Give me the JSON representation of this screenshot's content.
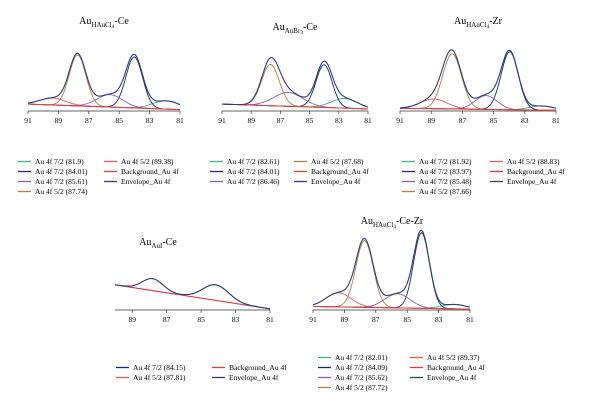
{
  "chart_data": [
    {
      "type": "line",
      "title_main": "Au",
      "title_sub": "HAuCl",
      "title_sub2": "4",
      "title_suffix": "-Ce",
      "xlim": [
        91,
        81
      ],
      "xticks": [
        91,
        89,
        87,
        85,
        83,
        81
      ],
      "series": [
        {
          "name": "Au 4f 7/2 (81.9)",
          "color": "#3cb878",
          "peak": {
            "center": 81.9,
            "height": 0.12,
            "width": 0.9
          }
        },
        {
          "name": "Au 4f 7/2 (84.01)",
          "color": "#1a2a6c",
          "peak": {
            "center": 84.01,
            "height": 0.74,
            "width": 0.55
          }
        },
        {
          "name": "Au 4f 7/2 (85.61)",
          "color": "#8e5fb3",
          "peak": {
            "center": 85.61,
            "height": 0.18,
            "width": 0.85
          }
        },
        {
          "name": "Au 4f 5/2 (87.74)",
          "color": "#b07d48",
          "peak": {
            "center": 87.74,
            "height": 0.74,
            "width": 0.55
          }
        },
        {
          "name": "Au 4f 5/2 (89.38)",
          "color": "#e05a5a",
          "peak": {
            "center": 89.38,
            "height": 0.1,
            "width": 0.85
          }
        },
        {
          "name": "Background_Au 4f",
          "color": "#e03c3c",
          "role": "background",
          "bg": [
            0.1,
            0.02
          ]
        },
        {
          "name": "Envelope_Au 4f",
          "color": "#2b3d7a",
          "role": "envelope"
        }
      ]
    },
    {
      "type": "line",
      "title_main": "Au",
      "title_sub": "AuBr",
      "title_sub2": "3",
      "title_suffix": "-Ce",
      "xlim": [
        91,
        81
      ],
      "xticks": [
        91,
        89,
        87,
        85,
        83,
        81
      ],
      "series": [
        {
          "name": "Au 4f 7/2 (82.61)",
          "color": "#3cb878",
          "peak": {
            "center": 82.61,
            "height": 0.14,
            "width": 0.9
          }
        },
        {
          "name": "Au 4f 7/2 (84.01)",
          "color": "#1a2a6c",
          "peak": {
            "center": 84.01,
            "height": 0.62,
            "width": 0.55
          }
        },
        {
          "name": "Au 4f 7/2 (86.46)",
          "color": "#8e5fb3",
          "peak": {
            "center": 86.46,
            "height": 0.2,
            "width": 1.0
          }
        },
        {
          "name": "Au 4f 5/2 (87.68)",
          "color": "#b07d48",
          "peak": {
            "center": 87.68,
            "height": 0.6,
            "width": 0.6
          }
        },
        {
          "name": "Background_Au 4f",
          "color": "#e03c3c",
          "role": "background",
          "bg": [
            0.1,
            0.03
          ]
        },
        {
          "name": "Envelope_Au 4f",
          "color": "#2b3d7a",
          "role": "envelope"
        }
      ]
    },
    {
      "type": "line",
      "title_main": "Au",
      "title_sub": "HAuCl",
      "title_sub2": "4",
      "title_suffix": "-Zr",
      "xlim": [
        91,
        81
      ],
      "xticks": [
        91,
        89,
        87,
        85,
        83,
        81
      ],
      "series": [
        {
          "name": "Au 4f 7/2 (81.92)",
          "color": "#3cb878",
          "peak": {
            "center": 81.92,
            "height": 0.06,
            "width": 0.8
          }
        },
        {
          "name": "Au 4f 7/2 (83.97)",
          "color": "#1a2a6c",
          "peak": {
            "center": 83.97,
            "height": 0.84,
            "width": 0.55
          }
        },
        {
          "name": "Au 4f 7/2 (85.48)",
          "color": "#8e5fb3",
          "peak": {
            "center": 85.48,
            "height": 0.2,
            "width": 0.7
          }
        },
        {
          "name": "Au 4f 5/2 (87.66)",
          "color": "#b07d48",
          "peak": {
            "center": 87.66,
            "height": 0.8,
            "width": 0.6
          }
        },
        {
          "name": "Au 4f 5/2 (88.83)",
          "color": "#e05a5a",
          "peak": {
            "center": 88.83,
            "height": 0.14,
            "width": 0.85
          }
        },
        {
          "name": "Background_Au 4f",
          "color": "#e03c3c",
          "role": "background",
          "bg": [
            0.04,
            0.01
          ]
        },
        {
          "name": "Envelope_Au 4f",
          "color": "#2b3d7a",
          "role": "envelope"
        }
      ]
    },
    {
      "type": "line",
      "title_main": "Au",
      "title_sub": "AuI",
      "title_sub2": "",
      "title_suffix": "-Ce",
      "xlim": [
        90,
        81
      ],
      "xticks": [
        89,
        87,
        85,
        83,
        81
      ],
      "series": [
        {
          "name": "Au 4f 7/2 (84.15)",
          "color": "#1a2a6c",
          "peak": {
            "center": 84.15,
            "height": 0.26,
            "width": 0.75
          }
        },
        {
          "name": "Au 4f 5/2 (87.81)",
          "color": "#e05a5a",
          "peak": {
            "center": 87.81,
            "height": 0.2,
            "width": 0.6
          }
        },
        {
          "name": "Background_Au 4f",
          "color": "#e03c3c",
          "role": "background",
          "bg": [
            0.42,
            0.02
          ]
        },
        {
          "name": "Envelope_Au 4f",
          "color": "#2b3d7a",
          "role": "envelope"
        }
      ]
    },
    {
      "type": "line",
      "title_main": "Au",
      "title_sub": "HAuCl",
      "title_sub2": "4",
      "title_suffix": "-Ce-Zr",
      "xlim": [
        91,
        81
      ],
      "xticks": [
        91,
        89,
        87,
        85,
        83,
        81
      ],
      "series": [
        {
          "name": "Au 4f 7/2 (82.01)",
          "color": "#3cb878",
          "peak": {
            "center": 82.01,
            "height": 0.05,
            "width": 0.8
          }
        },
        {
          "name": "Au 4f 7/2 (84.09)",
          "color": "#1a2a6c",
          "peak": {
            "center": 84.09,
            "height": 0.86,
            "width": 0.5
          }
        },
        {
          "name": "Au 4f 7/2 (85.62)",
          "color": "#8e5fb3",
          "peak": {
            "center": 85.62,
            "height": 0.16,
            "width": 0.8
          }
        },
        {
          "name": "Au 4f 5/2 (87.72)",
          "color": "#b07d48",
          "peak": {
            "center": 87.72,
            "height": 0.76,
            "width": 0.55
          }
        },
        {
          "name": "Au 4f 5/2 (89.37)",
          "color": "#e05a5a",
          "peak": {
            "center": 89.37,
            "height": 0.16,
            "width": 0.8
          }
        },
        {
          "name": "Background_Au 4f",
          "color": "#e03c3c",
          "role": "background",
          "bg": [
            0.04,
            0.01
          ]
        },
        {
          "name": "Envelope_Au 4f",
          "color": "#2b3d7a",
          "role": "envelope"
        }
      ]
    }
  ]
}
